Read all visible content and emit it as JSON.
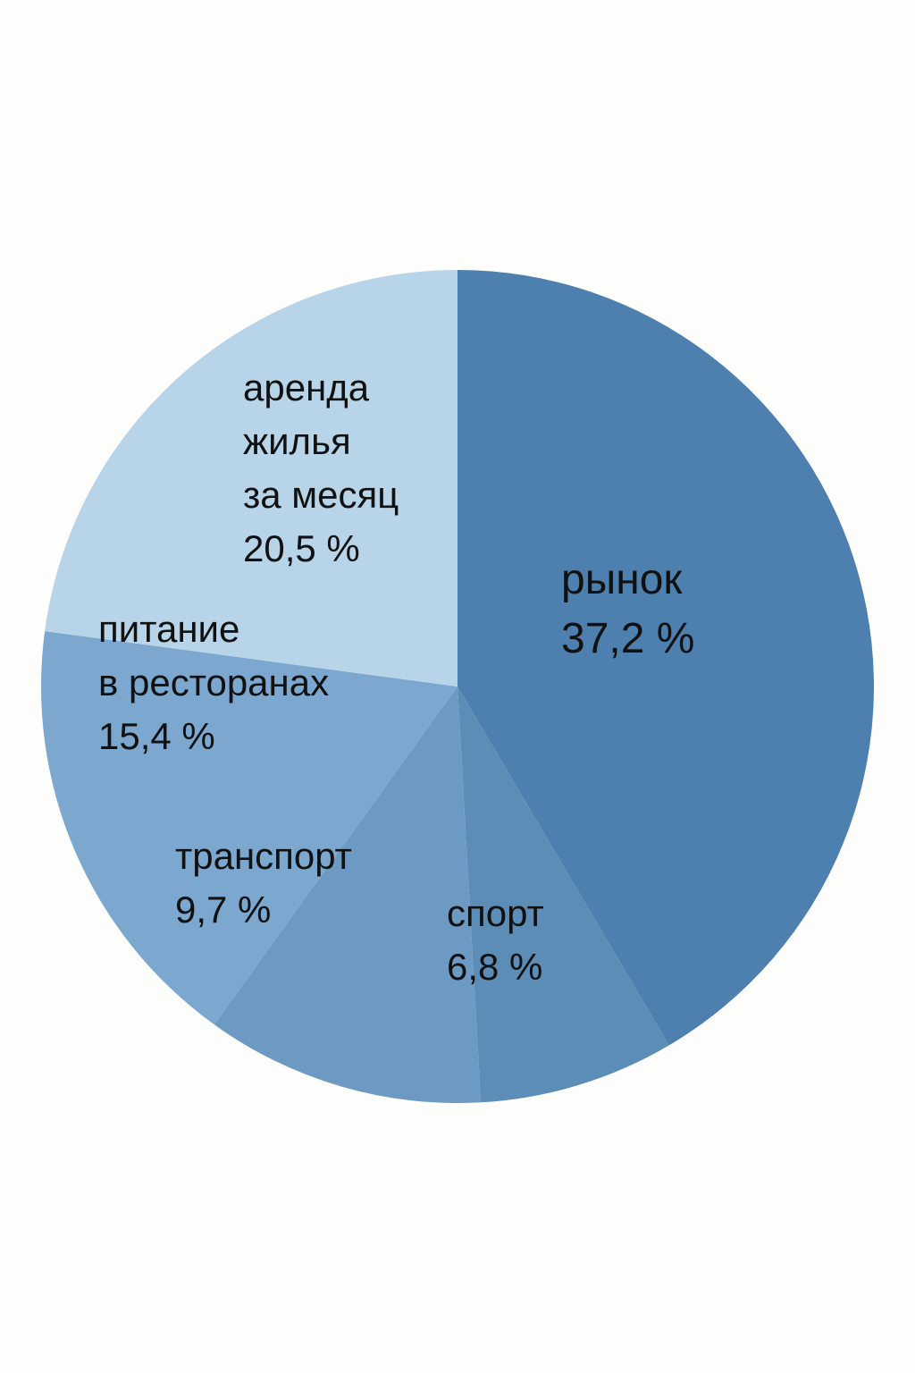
{
  "chart_data": {
    "type": "pie",
    "title": "",
    "slices": [
      {
        "label_lines": [
          "рынок"
        ],
        "value_text": "37,2 %",
        "value": 37.2,
        "color": "#4d80ae",
        "label_size": "large"
      },
      {
        "label_lines": [
          "спорт"
        ],
        "value_text": "6,8 %",
        "value": 6.8,
        "color": "#5b8db7",
        "label_size": "normal"
      },
      {
        "label_lines": [
          "транспорт"
        ],
        "value_text": "9,7 %",
        "value": 9.7,
        "color": "#6c9ac3",
        "label_size": "normal"
      },
      {
        "label_lines": [
          "питание",
          "в ресторанах"
        ],
        "value_text": "15,4 %",
        "value": 15.4,
        "color": "#7ca7cf",
        "label_size": "normal"
      },
      {
        "label_lines": [
          "аренда",
          "жилья",
          "за месяц"
        ],
        "value_text": "20,5 %",
        "value": 20.5,
        "color": "#b8d4e9",
        "label_size": "normal"
      }
    ]
  }
}
